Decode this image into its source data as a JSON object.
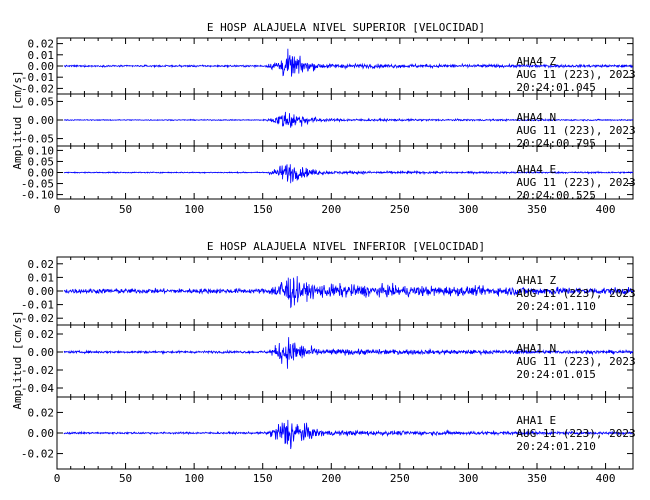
{
  "chart_data": [
    {
      "type": "line",
      "title": "E HOSP ALAJUELA NIVEL SUPERIOR [VELOCIDAD]",
      "ylabel": "Amplitud [cm/s]",
      "xlabel": "",
      "xlim": [
        0,
        420
      ],
      "x_ticks": [
        "0",
        "50",
        "100",
        "150",
        "200",
        "250",
        "300",
        "350",
        "400"
      ],
      "grid": false,
      "traces": [
        {
          "station": "AHA4",
          "component": "Z",
          "date": "AUG 11 (223), 2023",
          "time": "20:24:01.045",
          "ylim": [
            -0.025,
            0.025
          ],
          "y_ticks": [
            "0.02",
            "0.01",
            "0.00",
            "-0.01",
            "-0.02"
          ],
          "y_tick_values": [
            0.02,
            0.01,
            0.0,
            -0.01,
            -0.02
          ],
          "onset_s": 150,
          "peak_s": 170,
          "noise_amplitude": 0.0012,
          "peak_amplitude": 0.02,
          "color": "#0000ff"
        },
        {
          "station": "AHA4",
          "component": "N",
          "date": "AUG 11 (223), 2023",
          "time": "20:24:00.795",
          "ylim": [
            -0.07,
            0.07
          ],
          "y_ticks": [
            "0.05",
            "0.00",
            "-0.05"
          ],
          "y_tick_values": [
            0.05,
            0.0,
            -0.05
          ],
          "onset_s": 150,
          "peak_s": 170,
          "noise_amplitude": 0.002,
          "peak_amplitude": 0.045,
          "color": "#0000ff"
        },
        {
          "station": "AHA4",
          "component": "E",
          "date": "AUG 11 (223), 2023",
          "time": "20:24:00.525",
          "ylim": [
            -0.12,
            0.12
          ],
          "y_ticks": [
            "0.10",
            "0.05",
            "0.00",
            "-0.05",
            "-0.10"
          ],
          "y_tick_values": [
            0.1,
            0.05,
            0.0,
            -0.05,
            -0.1
          ],
          "onset_s": 150,
          "peak_s": 170,
          "noise_amplitude": 0.004,
          "peak_amplitude": 0.08,
          "color": "#0000ff"
        }
      ]
    },
    {
      "type": "line",
      "title": "E HOSP ALAJUELA NIVEL INFERIOR [VELOCIDAD]",
      "ylabel": "Amplitud [cm/s]",
      "xlabel": "",
      "xlim": [
        0,
        420
      ],
      "x_ticks": [
        "0",
        "50",
        "100",
        "150",
        "200",
        "250",
        "300",
        "350",
        "400"
      ],
      "grid": false,
      "traces": [
        {
          "station": "AHA1",
          "component": "Z",
          "date": "AUG 11 (223), 2023",
          "time": "20:24:01.110",
          "ylim": [
            -0.025,
            0.025
          ],
          "y_ticks": [
            "0.02",
            "0.01",
            "0.00",
            "-0.01",
            "-0.02"
          ],
          "y_tick_values": [
            0.02,
            0.01,
            0.0,
            -0.01,
            -0.02
          ],
          "onset_s": 150,
          "peak_s": 170,
          "noise_amplitude": 0.003,
          "peak_amplitude": 0.022,
          "color": "#0000ff"
        },
        {
          "station": "AHA1",
          "component": "N",
          "date": "AUG 11 (223), 2023",
          "time": "20:24:01.015",
          "ylim": [
            -0.05,
            0.03
          ],
          "y_ticks": [
            "0.02",
            "0.00",
            "-0.02",
            "-0.04"
          ],
          "y_tick_values": [
            0.02,
            0.0,
            -0.02,
            -0.04
          ],
          "onset_s": 150,
          "peak_s": 170,
          "noise_amplitude": 0.002,
          "peak_amplitude": 0.028,
          "color": "#0000ff"
        },
        {
          "station": "AHA1",
          "component": "E",
          "date": "AUG 11 (223), 2023",
          "time": "20:24:01.210",
          "ylim": [
            -0.035,
            0.035
          ],
          "y_ticks": [
            "0.02",
            "0.00",
            "-0.02"
          ],
          "y_tick_values": [
            0.02,
            0.0,
            -0.02
          ],
          "onset_s": 150,
          "peak_s": 170,
          "noise_amplitude": 0.0015,
          "peak_amplitude": 0.03,
          "color": "#0000ff"
        }
      ]
    }
  ]
}
